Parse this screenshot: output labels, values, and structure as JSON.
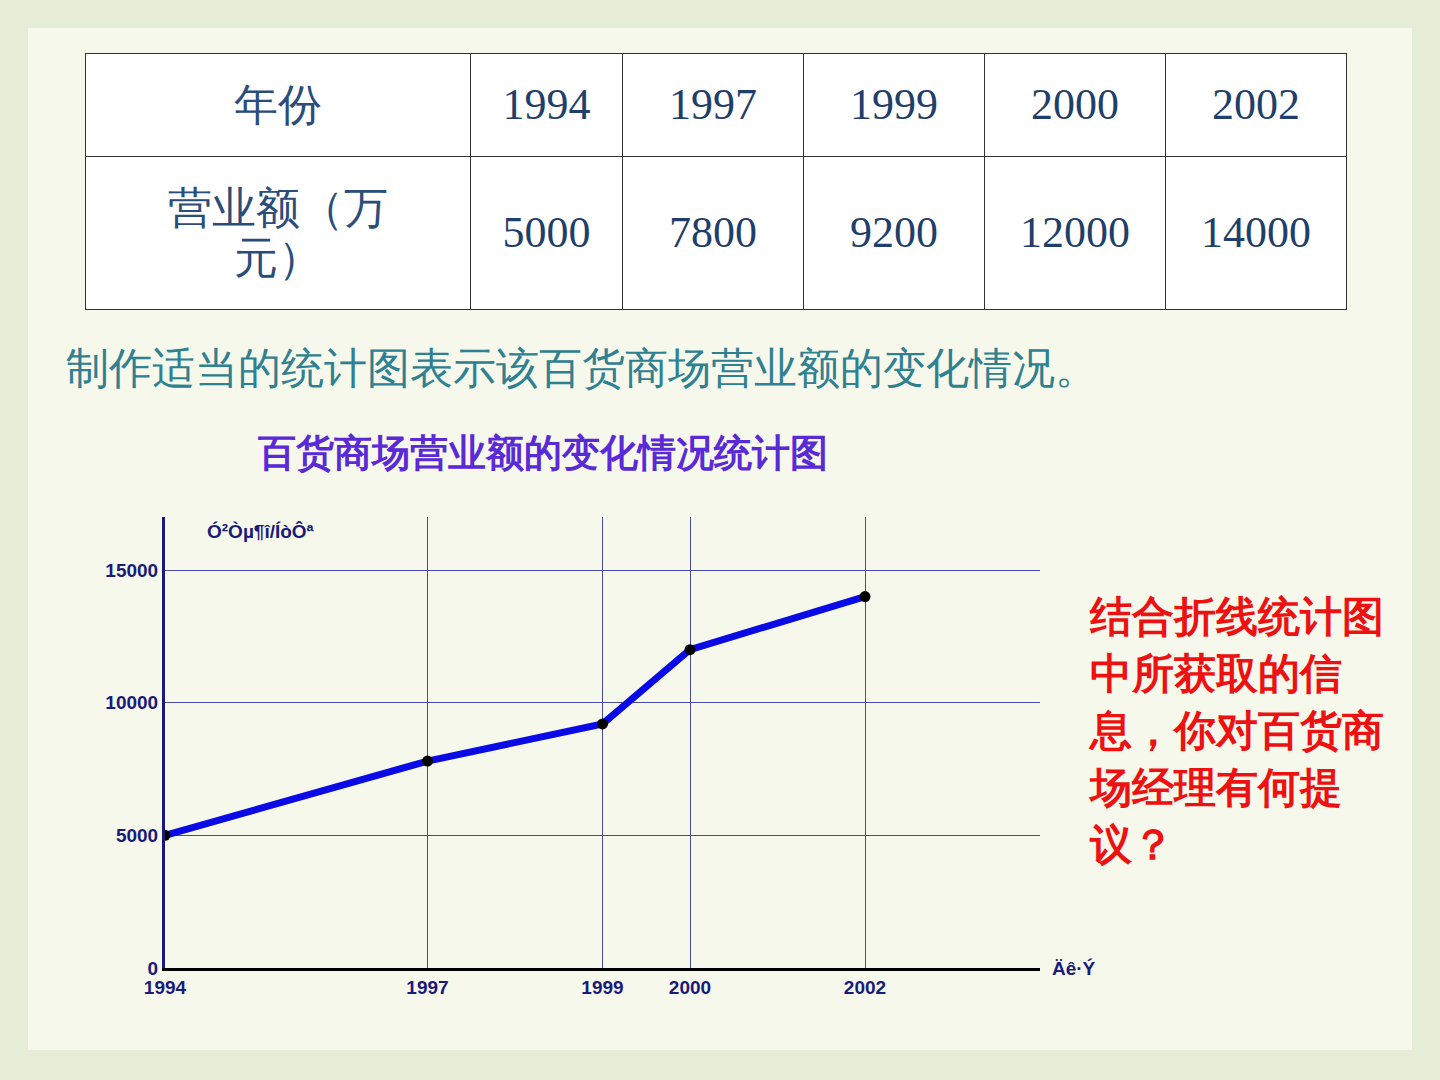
{
  "table": {
    "rows": [
      [
        "年份",
        "1994",
        "1997",
        "1999",
        "2000",
        "2002"
      ],
      [
        "营业额（万元）",
        "5000",
        "7800",
        "9200",
        "12000",
        "14000"
      ]
    ]
  },
  "prompt": "制作适当的统计图表示该百货商场营业额的变化情况。",
  "note": "结合折线统计图中所获取的信息，你对百货商场经理有何提议？",
  "chart_data": {
    "type": "line",
    "title": "百货商场营业额的变化情况统计图",
    "x_label": "Äê·Ý",
    "y_label": "Ó²Òµ¶î/ÍòÔª",
    "x": [
      1994,
      1997,
      1999,
      2000,
      2002
    ],
    "values": [
      5000,
      7800,
      9200,
      12000,
      14000
    ],
    "color": "#0a0ae6",
    "marker": "circle",
    "xlim": [
      1994,
      2004
    ],
    "xticks": [
      1994,
      1997,
      1999,
      2000,
      2002
    ],
    "ylim": [
      0,
      17000
    ],
    "yticks": [
      0,
      5000,
      10000,
      15000
    ],
    "grid": true
  }
}
